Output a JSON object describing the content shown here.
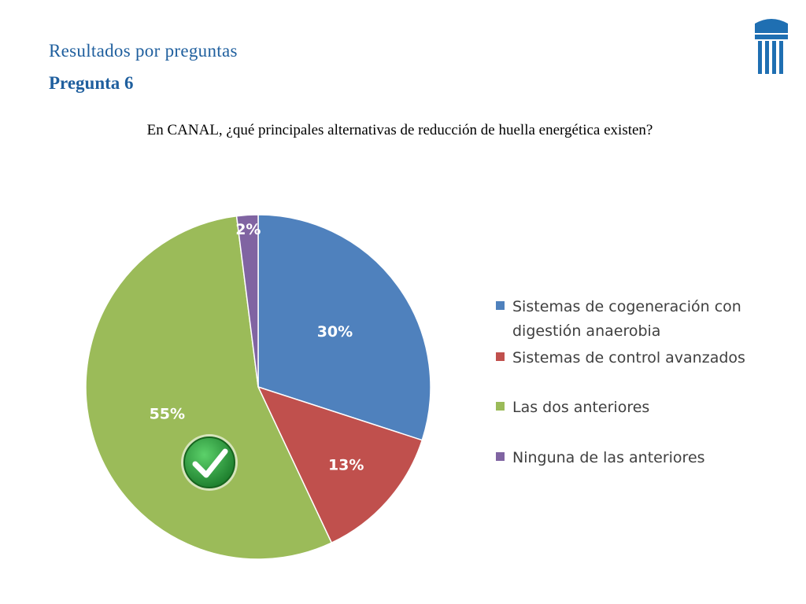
{
  "header": {
    "section_title": "Resultados  por  preguntas",
    "question_number": "Pregunta 6",
    "question_text": "En CANAL, ¿qué principales alternativas de reducción de huella energética existen?"
  },
  "chart_data": {
    "type": "pie",
    "slices": [
      {
        "label": "Sistemas de cogeneración con digestión anaerobia",
        "value": 30,
        "data_label": "30%",
        "color": "#4f81bd"
      },
      {
        "label": "Sistemas de control avanzados",
        "value": 13,
        "data_label": "13%",
        "color": "#c0504d"
      },
      {
        "label": "Las dos anteriores",
        "value": 55,
        "data_label": "55%",
        "color": "#9bbb59"
      },
      {
        "label": "Ninguna de las anteriores",
        "value": 2,
        "data_label": "2%",
        "color": "#8064a2"
      }
    ],
    "legend_position": "right",
    "correct_answer_marker": "check-mark-icon",
    "correct_answer_slice": "Las dos anteriores"
  },
  "colors": {
    "title_blue": "#1f5f9e",
    "check_green": "#2e9e3e"
  }
}
